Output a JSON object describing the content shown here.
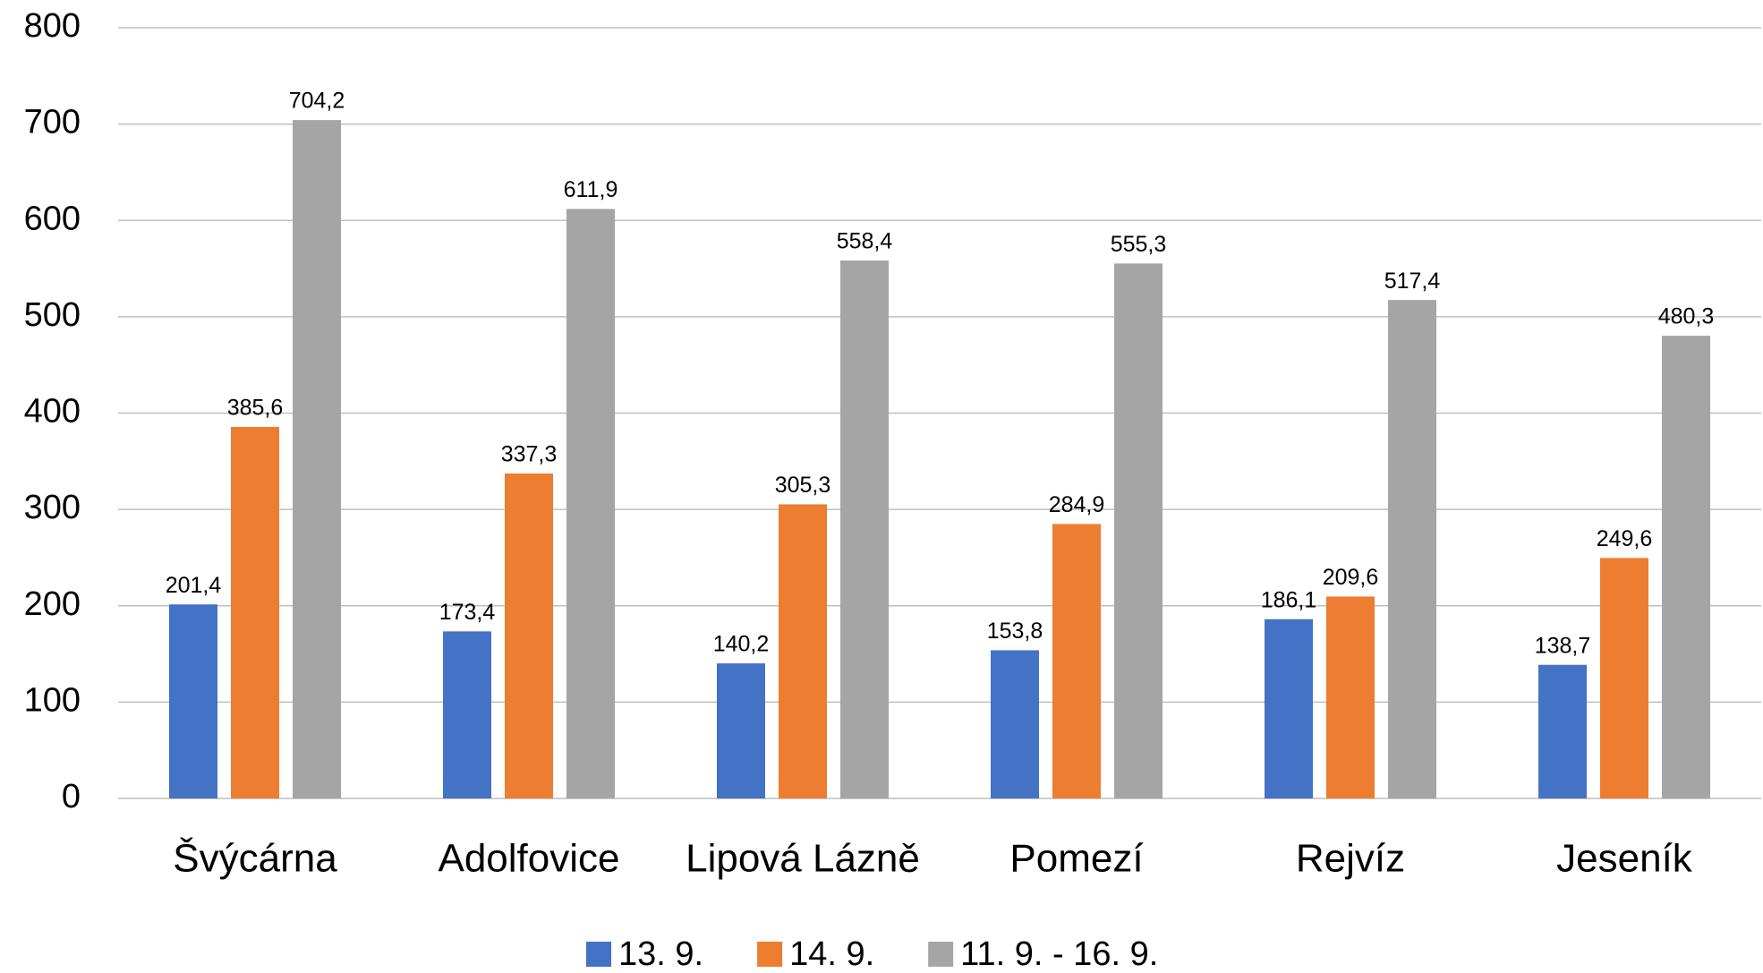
{
  "chart_data": {
    "type": "bar",
    "categories": [
      "Švýcárna",
      "Adolfovice",
      "Lipová Lázně",
      "Pomezí",
      "Rejvíz",
      "Jeseník"
    ],
    "series": [
      {
        "name": "13. 9.",
        "color": "#4472c4",
        "values": [
          201.4,
          173.4,
          140.2,
          153.8,
          186.1,
          138.7
        ],
        "value_labels": [
          "201,4",
          "173,4",
          "140,2",
          "153,8",
          "186,1",
          "138,7"
        ]
      },
      {
        "name": "14. 9.",
        "color": "#ed7d31",
        "values": [
          385.6,
          337.3,
          305.3,
          284.9,
          209.6,
          249.6
        ],
        "value_labels": [
          "385,6",
          "337,3",
          "305,3",
          "284,9",
          "209,6",
          "249,6"
        ]
      },
      {
        "name": "11. 9. - 16. 9.",
        "color": "#a5a5a5",
        "values": [
          704.2,
          611.9,
          558.4,
          555.3,
          517.4,
          480.3
        ],
        "value_labels": [
          "704,2",
          "611,9",
          "558,4",
          "555,3",
          "517,4",
          "480,3"
        ]
      }
    ],
    "ylim": [
      0,
      800
    ],
    "yticks": [
      0,
      100,
      200,
      300,
      400,
      500,
      600,
      700,
      800
    ],
    "grid": true,
    "legend": "bottom"
  }
}
